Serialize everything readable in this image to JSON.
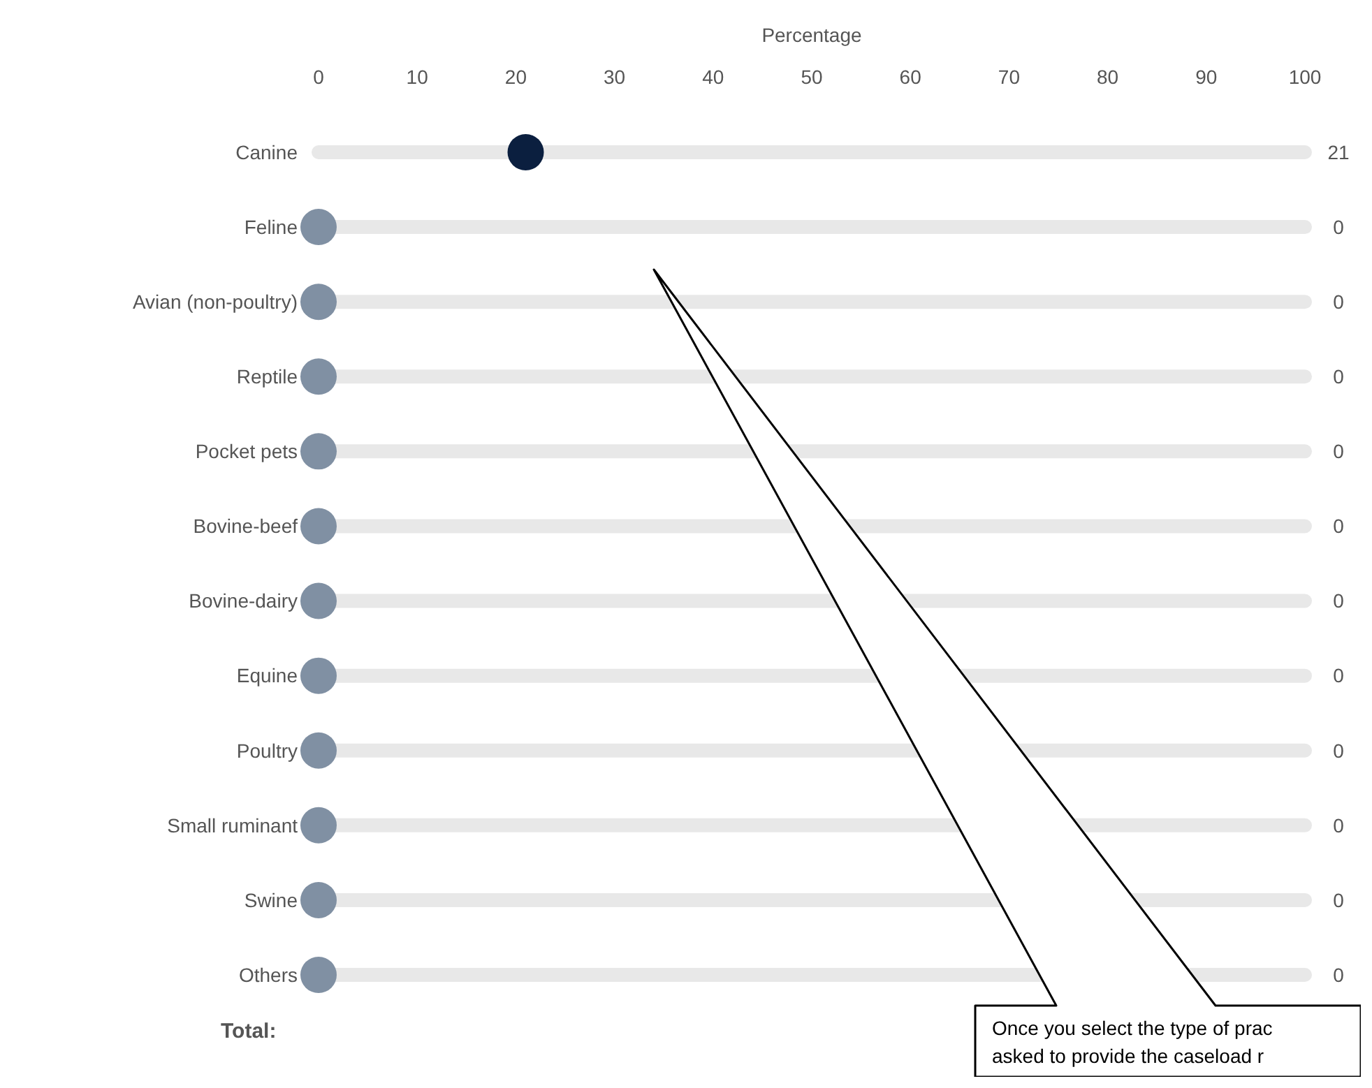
{
  "chart_data": {
    "type": "scatter",
    "orientation": "horizontal",
    "xlabel": "Percentage",
    "categories": [
      "Canine",
      "Feline",
      "Avian (non-poultry)",
      "Reptile",
      "Pocket pets",
      "Bovine-beef",
      "Bovine-dairy",
      "Equine",
      "Poultry",
      "Small ruminant",
      "Swine",
      "Others"
    ],
    "values": [
      21,
      0,
      0,
      0,
      0,
      0,
      0,
      0,
      0,
      0,
      0,
      0
    ],
    "colors": [
      "#0b1f3f",
      "#8090a3",
      "#8090a3",
      "#8090a3",
      "#8090a3",
      "#8090a3",
      "#8090a3",
      "#8090a3",
      "#8090a3",
      "#8090a3",
      "#8090a3",
      "#8090a3"
    ],
    "xlim": [
      0,
      100
    ],
    "xticks": [
      0,
      10,
      20,
      30,
      40,
      50,
      60,
      70,
      80,
      90,
      100
    ],
    "grid": "y",
    "marker": "circle",
    "data_labels": true,
    "annotations": [
      "Total:",
      "Once you select the type of prac asked to provide the caseload r"
    ]
  }
}
